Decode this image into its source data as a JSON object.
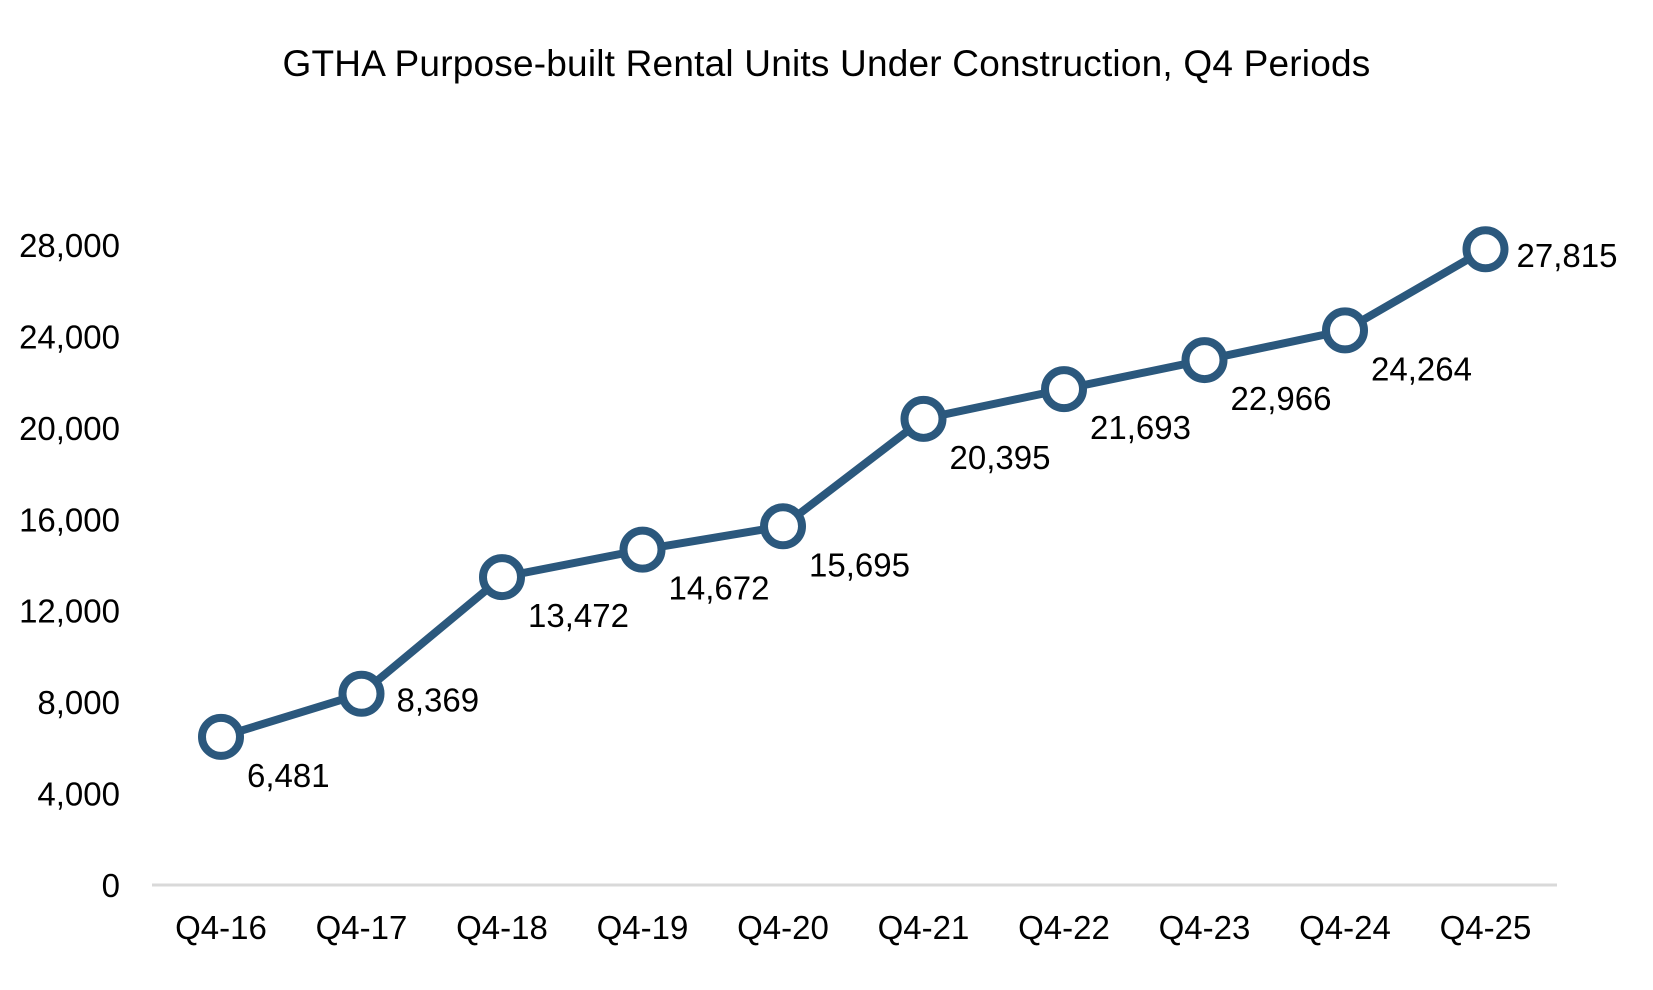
{
  "chart_data": {
    "type": "line",
    "title": "GTHA Purpose-built Rental Units Under Construction, Q4 Periods",
    "categories": [
      "Q4-16",
      "Q4-17",
      "Q4-18",
      "Q4-19",
      "Q4-20",
      "Q4-21",
      "Q4-22",
      "Q4-23",
      "Q4-24",
      "Q4-25"
    ],
    "series": [
      {
        "values": [
          6481,
          8369,
          13472,
          14672,
          15695,
          20395,
          21693,
          22966,
          24264,
          27815
        ],
        "data_labels": [
          "6,481",
          "8,369",
          "13,472",
          "14,672",
          "15,695",
          "20,395",
          "21,693",
          "22,966",
          "24,264",
          "27,815"
        ],
        "color": "#2b587d",
        "marker": "hollow-circle"
      }
    ],
    "y_ticks": [
      0,
      4000,
      8000,
      12000,
      16000,
      20000,
      24000,
      28000
    ],
    "y_tick_labels": [
      "0",
      "4,000",
      "8,000",
      "12,000",
      "16,000",
      "20,000",
      "24,000",
      "28,000"
    ],
    "ylim": [
      0,
      28000
    ],
    "grid": false,
    "legend": "none",
    "axis_color": "#d9d9d9"
  }
}
